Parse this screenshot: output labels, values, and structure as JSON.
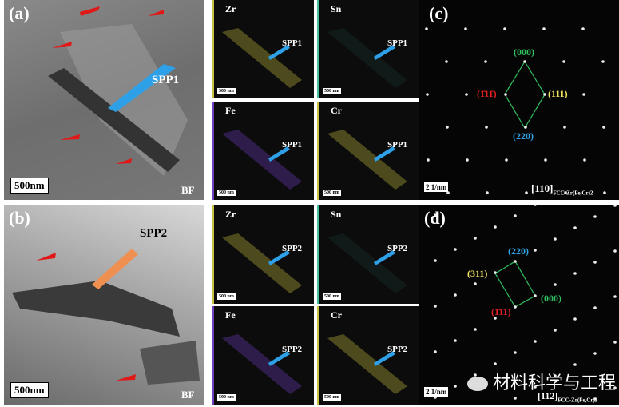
{
  "panels": {
    "a": {
      "label": "(a)",
      "particle": "SPP1",
      "mode": "BF",
      "scale": "500nm"
    },
    "b": {
      "label": "(b)",
      "particle": "SPP2",
      "mode": "BF",
      "scale": "500nm"
    },
    "c": {
      "label": "(c)",
      "spots": {
        "top": "(000)",
        "left": "(1̄11̄)",
        "right": "(111)",
        "bottom": "(220)"
      },
      "scale": "2 1/nm",
      "zone": "[1̄10]",
      "phase": "FCC-Zr(Fe,Cr)2"
    },
    "d": {
      "label": "(d)",
      "spots": {
        "top": "(220)",
        "left": "(311)",
        "right": "(000)",
        "bottom": "(1̄11)"
      },
      "scale": "2 1/nm",
      "zone": "[112]",
      "phase": "FCC-Zr(Fe,Cr)2"
    }
  },
  "eds": [
    {
      "element": "Zr",
      "particle": "SPP1",
      "scale": "500 nm",
      "color": "#c8c040"
    },
    {
      "element": "Sn",
      "particle": "SPP1",
      "scale": "500 nm",
      "color": "#40c0a0"
    },
    {
      "element": "Fe",
      "particle": "SPP1",
      "scale": "500 nm",
      "color": "#7040c0"
    },
    {
      "element": "Cr",
      "particle": "SPP1",
      "scale": "500 nm",
      "color": "#c8c040"
    },
    {
      "element": "Zr",
      "particle": "SPP2",
      "scale": "500 nm",
      "color": "#c8c040"
    },
    {
      "element": "Sn",
      "particle": "SPP2",
      "scale": "500 nm",
      "color": "#40c0a0"
    },
    {
      "element": "Fe",
      "particle": "SPP2",
      "scale": "500 nm",
      "color": "#7040c0"
    },
    {
      "element": "Cr",
      "particle": "SPP2",
      "scale": "500 nm",
      "color": "#c8c040"
    }
  ],
  "watermark": "材料科学与工程",
  "colors": {
    "arrow_red": "#e01818",
    "arrow_blue": "#2ea0e8",
    "arrow_orange": "#f09050",
    "spot_green": "#30c060",
    "spot_yellow": "#f0e060",
    "spot_red": "#e02020",
    "spot_blue": "#30a0e0"
  }
}
